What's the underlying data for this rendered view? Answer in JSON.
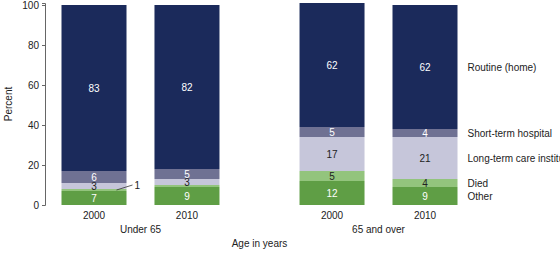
{
  "chart_data": {
    "type": "bar",
    "stacked": true,
    "data_labels": true,
    "y_label": "Percent",
    "x_label": "Age in years",
    "groups": [
      {
        "name": "Under 65",
        "categories": [
          "2000",
          "2010"
        ]
      },
      {
        "name": "65 and over",
        "categories": [
          "2000",
          "2010"
        ]
      }
    ],
    "series": [
      {
        "name": "Other",
        "color": "#5f9e45",
        "values": [
          7,
          9,
          12,
          9
        ]
      },
      {
        "name": "Died",
        "color": "#93c47d",
        "values": [
          1,
          1,
          5,
          4
        ],
        "value_labels": [
          "1",
          null,
          "5",
          "4"
        ]
      },
      {
        "name": "Long-term care institution",
        "color": "#c6c6da",
        "values": [
          3,
          3,
          17,
          21
        ]
      },
      {
        "name": "Short-term hospital",
        "color": "#6f7193",
        "values": [
          6,
          5,
          5,
          4
        ]
      },
      {
        "name": "Routine (home)",
        "color": "#1b2a5b",
        "values": [
          83,
          82,
          62,
          62
        ]
      }
    ],
    "ylim": [
      0,
      101
    ],
    "yticks": [
      0,
      20,
      40,
      60,
      80,
      100
    ]
  }
}
